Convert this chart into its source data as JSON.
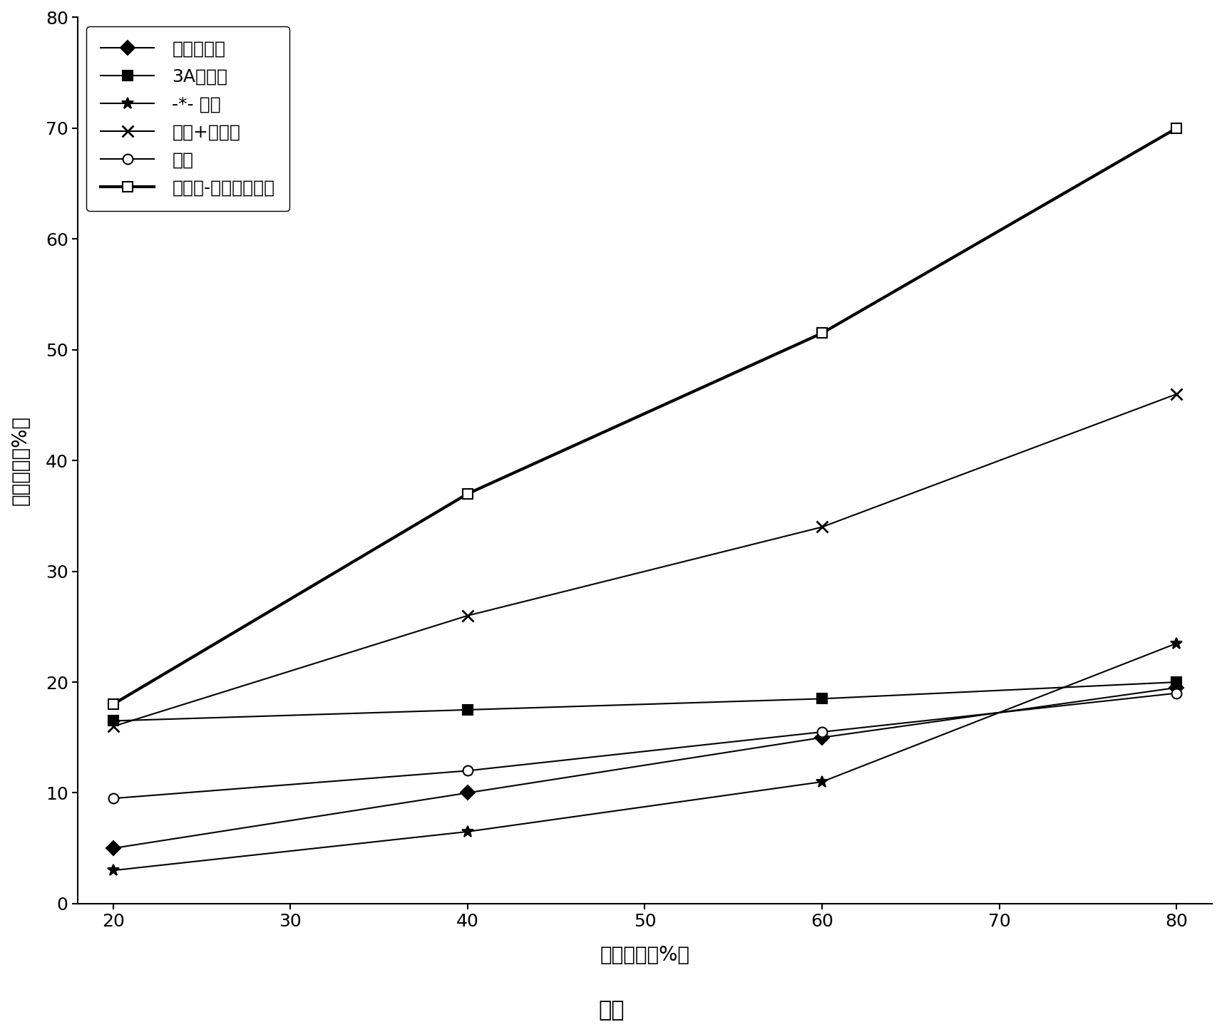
{
  "x": [
    20,
    40,
    60,
    80
  ],
  "series": [
    {
      "label": "中空干燥剂",
      "values": [
        5,
        10,
        15,
        19.5
      ],
      "marker": "D",
      "markersize": 10,
      "color": "#000000",
      "linestyle": "-",
      "linewidth": 1.5,
      "markerfacecolor": "#000000"
    },
    {
      "label": "3A分子筛",
      "values": [
        16.5,
        17.5,
        18.5,
        20
      ],
      "marker": "s",
      "markersize": 10,
      "color": "#000000",
      "linestyle": "-",
      "linewidth": 1.5,
      "markerfacecolor": "#000000"
    },
    {
      "label": "-*- 硬胶",
      "values": [
        3,
        6.5,
        11,
        23.5
      ],
      "marker": "*",
      "markersize": 12,
      "color": "#000000",
      "linestyle": "-",
      "linewidth": 1.5,
      "markerfacecolor": "#000000"
    },
    {
      "label": "凹土+氯化馒",
      "values": [
        16,
        26,
        34,
        46
      ],
      "marker": "x",
      "markersize": 12,
      "color": "#000000",
      "linestyle": "-",
      "linewidth": 1.5,
      "markerfacecolor": "#000000",
      "markeredgewidth": 2.0
    },
    {
      "label": "凹土",
      "values": [
        9.5,
        12,
        15.5,
        19
      ],
      "marker": "o",
      "markersize": 10,
      "color": "#000000",
      "linestyle": "-",
      "linewidth": 1.5,
      "markerfacecolor": "white"
    },
    {
      "label": "废酸液-凹凸棒石粘土",
      "values": [
        18,
        37,
        51.5,
        70
      ],
      "marker": "s",
      "markersize": 10,
      "color": "#000000",
      "linestyle": "-",
      "linewidth": 3.0,
      "markerfacecolor": "white"
    }
  ],
  "xlabel": "相对湿度（%）",
  "ylabel": "吸附水量（%）",
  "xlim": [
    18,
    82
  ],
  "ylim": [
    0,
    80
  ],
  "xticks": [
    20,
    30,
    40,
    50,
    60,
    70,
    80
  ],
  "yticks": [
    0,
    10,
    20,
    30,
    40,
    50,
    60,
    70,
    80
  ],
  "caption": "图１",
  "legend_loc": "upper left",
  "background_color": "#ffffff",
  "figwidth": 17.15,
  "figheight": 14.41,
  "dpi": 100
}
